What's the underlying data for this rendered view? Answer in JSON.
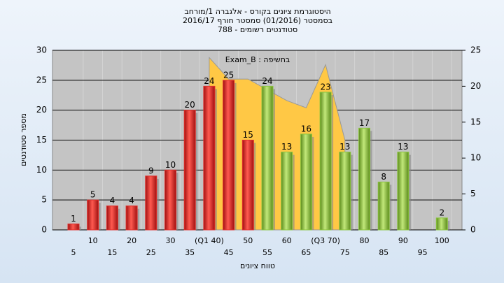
{
  "chart_data": {
    "type": "bar",
    "title": "היסטוגרמת ציונים בקורס - אלגברה 1/מורחב",
    "subtitle": "בסמסטר (01/2016) סמסטר חורף 2016/17",
    "subtitle2": "788 - סטודנטים רשומים",
    "annotation": "Exam_B : בחשיפה",
    "y_label": "מספר סטודנטים",
    "x_label": "טווח ציונים",
    "categories": [
      "5",
      "10",
      "15",
      "20",
      "25",
      "30",
      "35",
      "(Q1 40)",
      "45",
      "50",
      "55",
      "60",
      "65",
      "(Q3 70)",
      "75",
      "80",
      "85",
      "90",
      "95",
      "100"
    ],
    "series": [
      {
        "color": "#e3302c",
        "values": [
          1,
          5,
          4,
          4,
          9,
          10,
          20,
          24,
          25,
          15,
          null,
          null,
          null,
          null,
          null,
          null,
          null,
          null,
          null,
          null
        ]
      },
      {
        "color": "#8cc63f",
        "values": [
          null,
          null,
          null,
          null,
          null,
          null,
          null,
          null,
          null,
          null,
          24,
          13,
          16,
          23,
          13,
          17,
          8,
          13,
          null,
          2
        ]
      },
      {
        "color": "#ffc845",
        "axis": "y2",
        "type": "area",
        "values": [
          null,
          null,
          null,
          null,
          null,
          null,
          null,
          24,
          21,
          21,
          19.5,
          18,
          17,
          23,
          12.5,
          null,
          null,
          null,
          null,
          null
        ]
      }
    ],
    "ylim": [
      0,
      30
    ],
    "yticks": [
      0,
      5,
      10,
      15,
      20,
      25,
      30
    ],
    "y2lim": [
      0,
      25
    ],
    "y2ticks": [
      0,
      5,
      10,
      15,
      20,
      25
    ],
    "grid": true
  }
}
